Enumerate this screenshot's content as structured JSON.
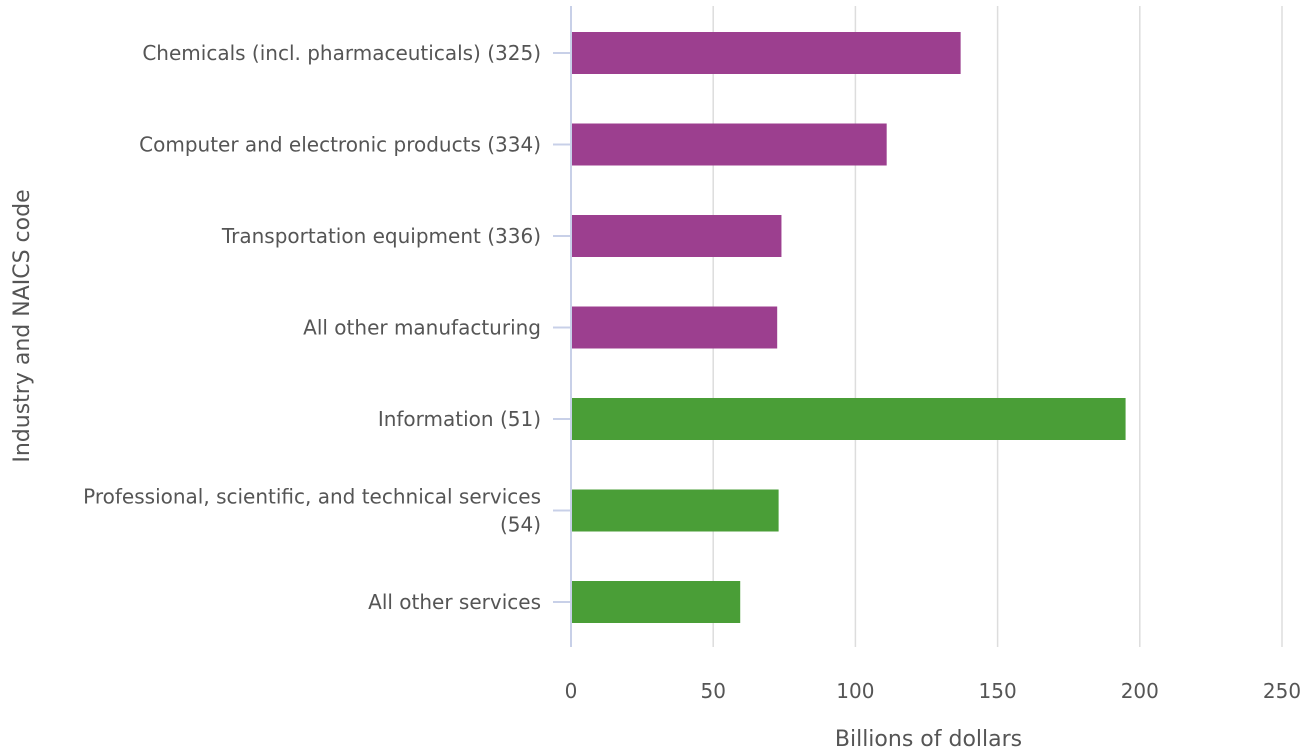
{
  "chart_data": {
    "type": "bar",
    "orientation": "horizontal",
    "xlabel": "Billions of dollars",
    "ylabel": "Industry and NAICS code",
    "xlim": [
      0,
      250
    ],
    "x_ticks": [
      0,
      50,
      100,
      150,
      200,
      250
    ],
    "grid": true,
    "categories": [
      {
        "label": [
          "Chemicals (incl. pharmaceuticals) (325)"
        ],
        "value": 137,
        "color": "#9c3f8f"
      },
      {
        "label": [
          "Computer and electronic products (334)"
        ],
        "value": 111,
        "color": "#9c3f8f"
      },
      {
        "label": [
          "Transportation equipment (336)"
        ],
        "value": 74,
        "color": "#9c3f8f"
      },
      {
        "label": [
          "All other manufacturing"
        ],
        "value": 72.5,
        "color": "#9c3f8f"
      },
      {
        "label": [
          "Information (51)"
        ],
        "value": 195,
        "color": "#4a9e37"
      },
      {
        "label": [
          "Professional, scientific, and technical services",
          "(54)"
        ],
        "value": 73,
        "color": "#4a9e37"
      },
      {
        "label": [
          "All other services"
        ],
        "value": 59.5,
        "color": "#4a9e37"
      }
    ]
  }
}
